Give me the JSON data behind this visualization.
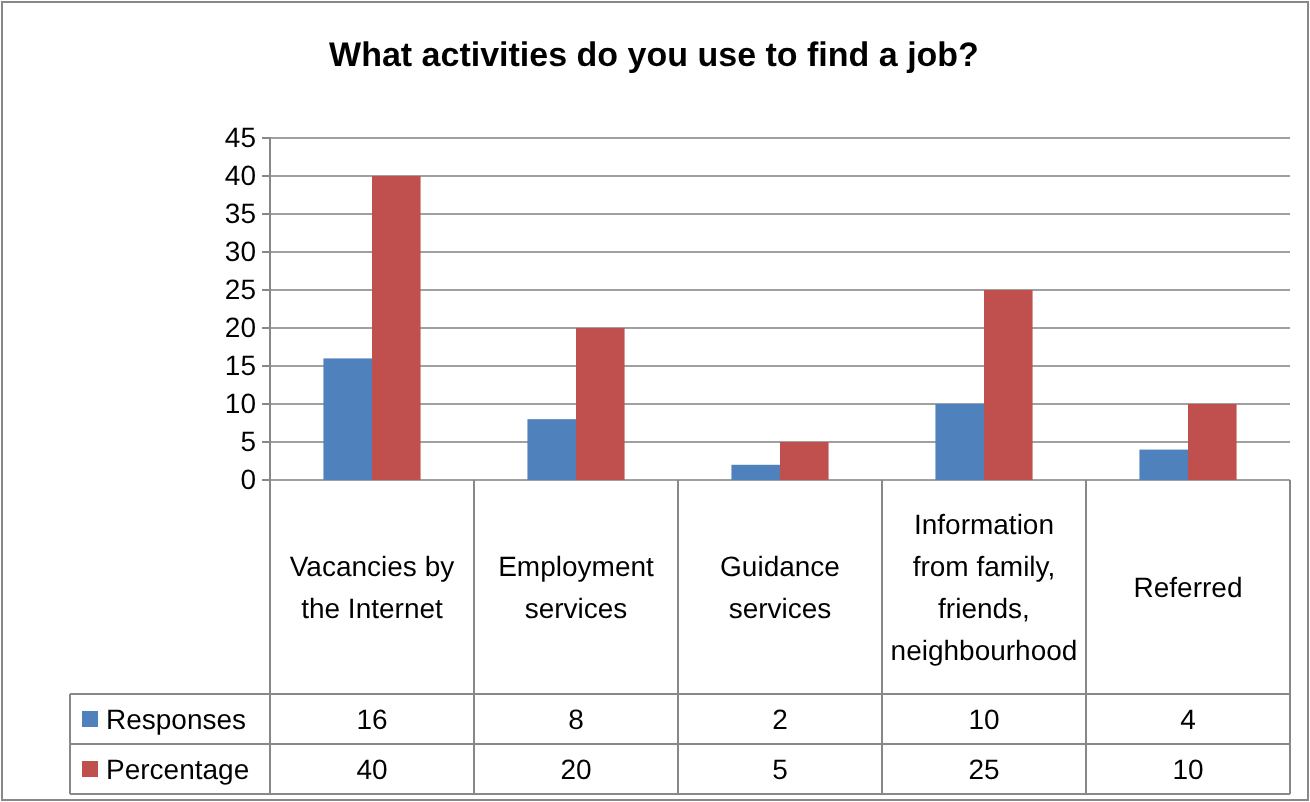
{
  "chart_data": {
    "type": "bar",
    "title": "What activities do you use to find a job?",
    "categories": [
      "Vacancies by the Internet",
      "Employment services",
      "Guidance services",
      "Information from family, friends, neighbourhood",
      "Referred"
    ],
    "series": [
      {
        "name": "Responses",
        "color": "#4f81bd",
        "values": [
          16,
          8,
          2,
          10,
          4
        ]
      },
      {
        "name": "Percentage",
        "color": "#c0504d",
        "values": [
          40,
          20,
          5,
          25,
          10
        ]
      }
    ],
    "ylim": [
      0,
      45
    ],
    "yticks": [
      0,
      5,
      10,
      15,
      20,
      25,
      30,
      35,
      40,
      45
    ],
    "grid": "y",
    "legend": "bottom",
    "data_labels": true
  }
}
